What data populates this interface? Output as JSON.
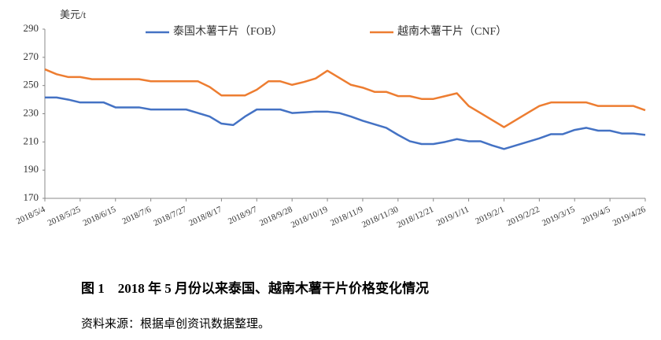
{
  "chart_data": {
    "type": "line",
    "unit_label": "美元/t",
    "categories": [
      "2018/5/4",
      null,
      null,
      "2018/5/25",
      null,
      null,
      "2018/6/15",
      null,
      null,
      "2018/7/6",
      null,
      null,
      "2018/7/27",
      null,
      null,
      "2018/8/17",
      null,
      null,
      "2018/9/7",
      null,
      null,
      "2018/9/28",
      null,
      null,
      "2018/10/19",
      null,
      null,
      "2018/11/9",
      null,
      null,
      "2018/11/30",
      null,
      null,
      "2018/12/21",
      null,
      null,
      "2019/1/11",
      null,
      null,
      "2019/2/1",
      null,
      null,
      "2019/2/22",
      null,
      null,
      "2019/3/15",
      null,
      null,
      "2019/4/5",
      null,
      null,
      "2019/4/26"
    ],
    "series": [
      {
        "name": "泰国木薯干片（FOB）",
        "color": "#4472c4",
        "values": [
          241.5,
          241.5,
          240,
          238,
          238,
          238,
          234.5,
          234.5,
          234.5,
          233,
          233,
          233,
          233,
          230.5,
          228,
          223,
          222,
          228,
          233,
          233,
          233,
          230.5,
          231,
          231.5,
          231.5,
          230.5,
          228,
          225,
          222.5,
          220,
          215,
          210.5,
          208.5,
          208.5,
          210,
          212,
          210.5,
          210.5,
          207.5,
          205,
          207.5,
          210,
          212.5,
          215.5,
          215.5,
          218.5,
          220,
          218,
          218,
          216,
          216,
          215
        ]
      },
      {
        "name": "越南木薯干片（CNF）",
        "color": "#ed7d31",
        "values": [
          261.5,
          258,
          256,
          256,
          254.5,
          254.5,
          254.5,
          254.5,
          254.5,
          253,
          253,
          253,
          253,
          253,
          249,
          243,
          243,
          243,
          247,
          253,
          253,
          250.5,
          252.5,
          255,
          260.5,
          255.5,
          250.5,
          248.5,
          245.5,
          245.5,
          242.5,
          242.5,
          240.5,
          240.5,
          242.5,
          244.5,
          235.5,
          230.5,
          225.5,
          220.5,
          225.5,
          230.5,
          235.5,
          238,
          238,
          238,
          238,
          235.5,
          235.5,
          235.5,
          235.5,
          232.5
        ]
      }
    ],
    "ylim": [
      170,
      290
    ],
    "yticks": [
      170,
      190,
      210,
      230,
      250,
      270,
      290
    ],
    "legend": "top",
    "grid": false
  },
  "caption": "图 1　2018 年 5 月份以来泰国、越南木薯干片价格变化情况",
  "source": "资料来源：根据卓创资讯数据整理。"
}
